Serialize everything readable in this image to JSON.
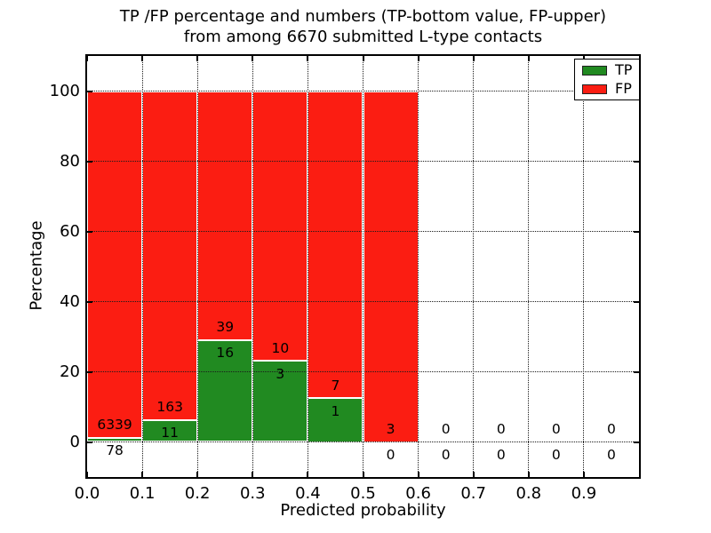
{
  "title": {
    "line1": "TP /FP percentage and numbers (TP-bottom value, FP-upper)",
    "line2": "from among 6670 submitted L-type contacts"
  },
  "axes": {
    "xlabel": "Predicted probability",
    "ylabel": "Percentage",
    "xticks": [
      "0.0",
      "0.1",
      "0.2",
      "0.3",
      "0.4",
      "0.5",
      "0.6",
      "0.7",
      "0.8",
      "0.9"
    ],
    "yticks": [
      0,
      20,
      40,
      60,
      80,
      100
    ],
    "xlim": [
      0.0,
      1.0
    ],
    "ylim": [
      -10,
      110
    ],
    "grid": "dotted"
  },
  "legend": [
    {
      "label": "TP",
      "color": "#218a21"
    },
    {
      "label": "FP",
      "color": "#fb1d12"
    }
  ],
  "chart_data": {
    "type": "bar",
    "stacked": true,
    "normalized_to_percent": 100,
    "total_contacts": 6670,
    "title": "TP /FP percentage and numbers (TP-bottom value, FP-upper) from among 6670 submitted L-type contacts",
    "xlabel": "Predicted probability",
    "ylabel": "Percentage",
    "bin_edges": [
      0.0,
      0.1,
      0.2,
      0.3,
      0.4,
      0.5,
      0.6,
      0.7,
      0.8,
      0.9,
      1.0
    ],
    "series": [
      {
        "name": "TP",
        "color": "#218a21",
        "counts": [
          78,
          11,
          16,
          3,
          1,
          0,
          0,
          0,
          0,
          0
        ]
      },
      {
        "name": "FP",
        "color": "#fb1d12",
        "counts": [
          6339,
          163,
          39,
          10,
          7,
          3,
          0,
          0,
          0,
          0
        ]
      }
    ],
    "tp_percent": [
      1.22,
      6.32,
      29.09,
      23.08,
      12.5,
      0,
      null,
      null,
      null,
      null
    ],
    "fp_percent": [
      98.78,
      93.68,
      70.91,
      76.92,
      87.5,
      100,
      null,
      null,
      null,
      null
    ],
    "label_offset_units": 3.7
  }
}
